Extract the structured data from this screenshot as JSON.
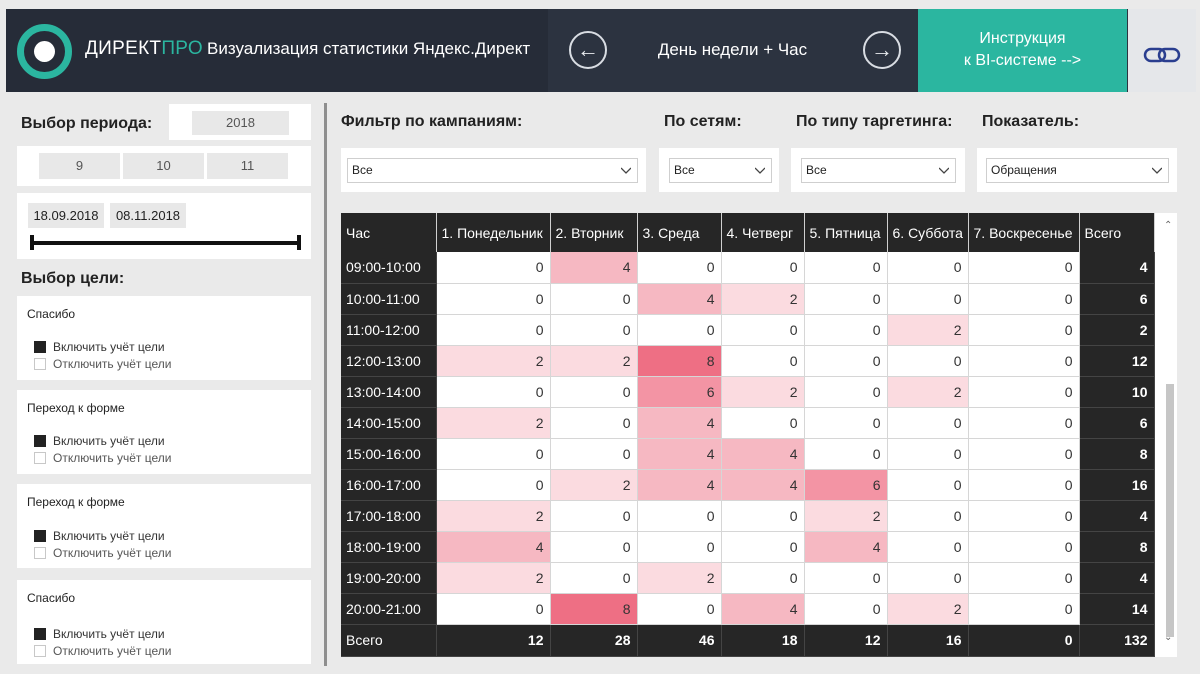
{
  "header": {
    "brand_main": "ДИРЕКТ",
    "brand_accent": "ПРО",
    "subtitle": "Визуализация статистики Яндекс.Директ",
    "nav_title": "День недели + Час",
    "instruction_line1": "Инструкция",
    "instruction_line2": "к BI-системе  -->",
    "prev_icon": "arrow-left-icon",
    "next_icon": "arrow-right-icon",
    "link_icon": "link-icon",
    "accent_color": "#2bb6a0"
  },
  "period": {
    "label": "Выбор периода:",
    "year": "2018",
    "months": [
      "9",
      "10",
      "11"
    ],
    "date_from": "18.09.2018",
    "date_to": "08.11.2018"
  },
  "goals": {
    "label": "Выбор цели:",
    "cards": [
      {
        "title": "Спасибо",
        "include": "Включить учёт цели",
        "exclude": "Отключить учёт цели"
      },
      {
        "title": "Переход к форме",
        "include": "Включить учёт цели",
        "exclude": "Отключить учёт цели"
      },
      {
        "title": "Переход к форме",
        "include": "Включить учёт цели",
        "exclude": "Отключить учёт цели"
      },
      {
        "title": "Спасибо",
        "include": "Включить учёт цели",
        "exclude": "Отключить учёт цели"
      }
    ]
  },
  "filters": {
    "campaigns": {
      "label": "Фильтр по кампаниям:",
      "value": "Все"
    },
    "networks": {
      "label": "По сетям:",
      "value": "Все"
    },
    "targeting": {
      "label": "По типу таргетинга:",
      "value": "Все"
    },
    "metric": {
      "label": "Показатель:",
      "value": "Обращения"
    }
  },
  "table": {
    "headers": [
      "Час",
      "1. Понедельник",
      "2. Вторник",
      "3. Среда",
      "4. Четверг",
      "5. Пятница",
      "6. Суббота",
      "7. Воскресенье",
      "Всего"
    ],
    "rows": [
      {
        "hour": "09:00-10:00",
        "values": [
          0,
          4,
          0,
          0,
          0,
          0,
          0
        ],
        "total": 4
      },
      {
        "hour": "10:00-11:00",
        "values": [
          0,
          0,
          4,
          2,
          0,
          0,
          0
        ],
        "total": 6
      },
      {
        "hour": "11:00-12:00",
        "values": [
          0,
          0,
          0,
          0,
          0,
          2,
          0
        ],
        "total": 2
      },
      {
        "hour": "12:00-13:00",
        "values": [
          2,
          2,
          8,
          0,
          0,
          0,
          0
        ],
        "total": 12
      },
      {
        "hour": "13:00-14:00",
        "values": [
          0,
          0,
          6,
          2,
          0,
          2,
          0
        ],
        "total": 10
      },
      {
        "hour": "14:00-15:00",
        "values": [
          2,
          0,
          4,
          0,
          0,
          0,
          0
        ],
        "total": 6
      },
      {
        "hour": "15:00-16:00",
        "values": [
          0,
          0,
          4,
          4,
          0,
          0,
          0
        ],
        "total": 8
      },
      {
        "hour": "16:00-17:00",
        "values": [
          0,
          2,
          4,
          4,
          6,
          0,
          0
        ],
        "total": 16
      },
      {
        "hour": "17:00-18:00",
        "values": [
          2,
          0,
          0,
          0,
          2,
          0,
          0
        ],
        "total": 4
      },
      {
        "hour": "18:00-19:00",
        "values": [
          4,
          0,
          0,
          0,
          4,
          0,
          0
        ],
        "total": 8
      },
      {
        "hour": "19:00-20:00",
        "values": [
          2,
          0,
          2,
          0,
          0,
          0,
          0
        ],
        "total": 4
      },
      {
        "hour": "20:00-21:00",
        "values": [
          0,
          8,
          0,
          4,
          0,
          2,
          0
        ],
        "total": 14
      }
    ],
    "footer": {
      "label": "Всего",
      "values": [
        12,
        28,
        46,
        18,
        12,
        16,
        0
      ],
      "total": 132
    }
  }
}
